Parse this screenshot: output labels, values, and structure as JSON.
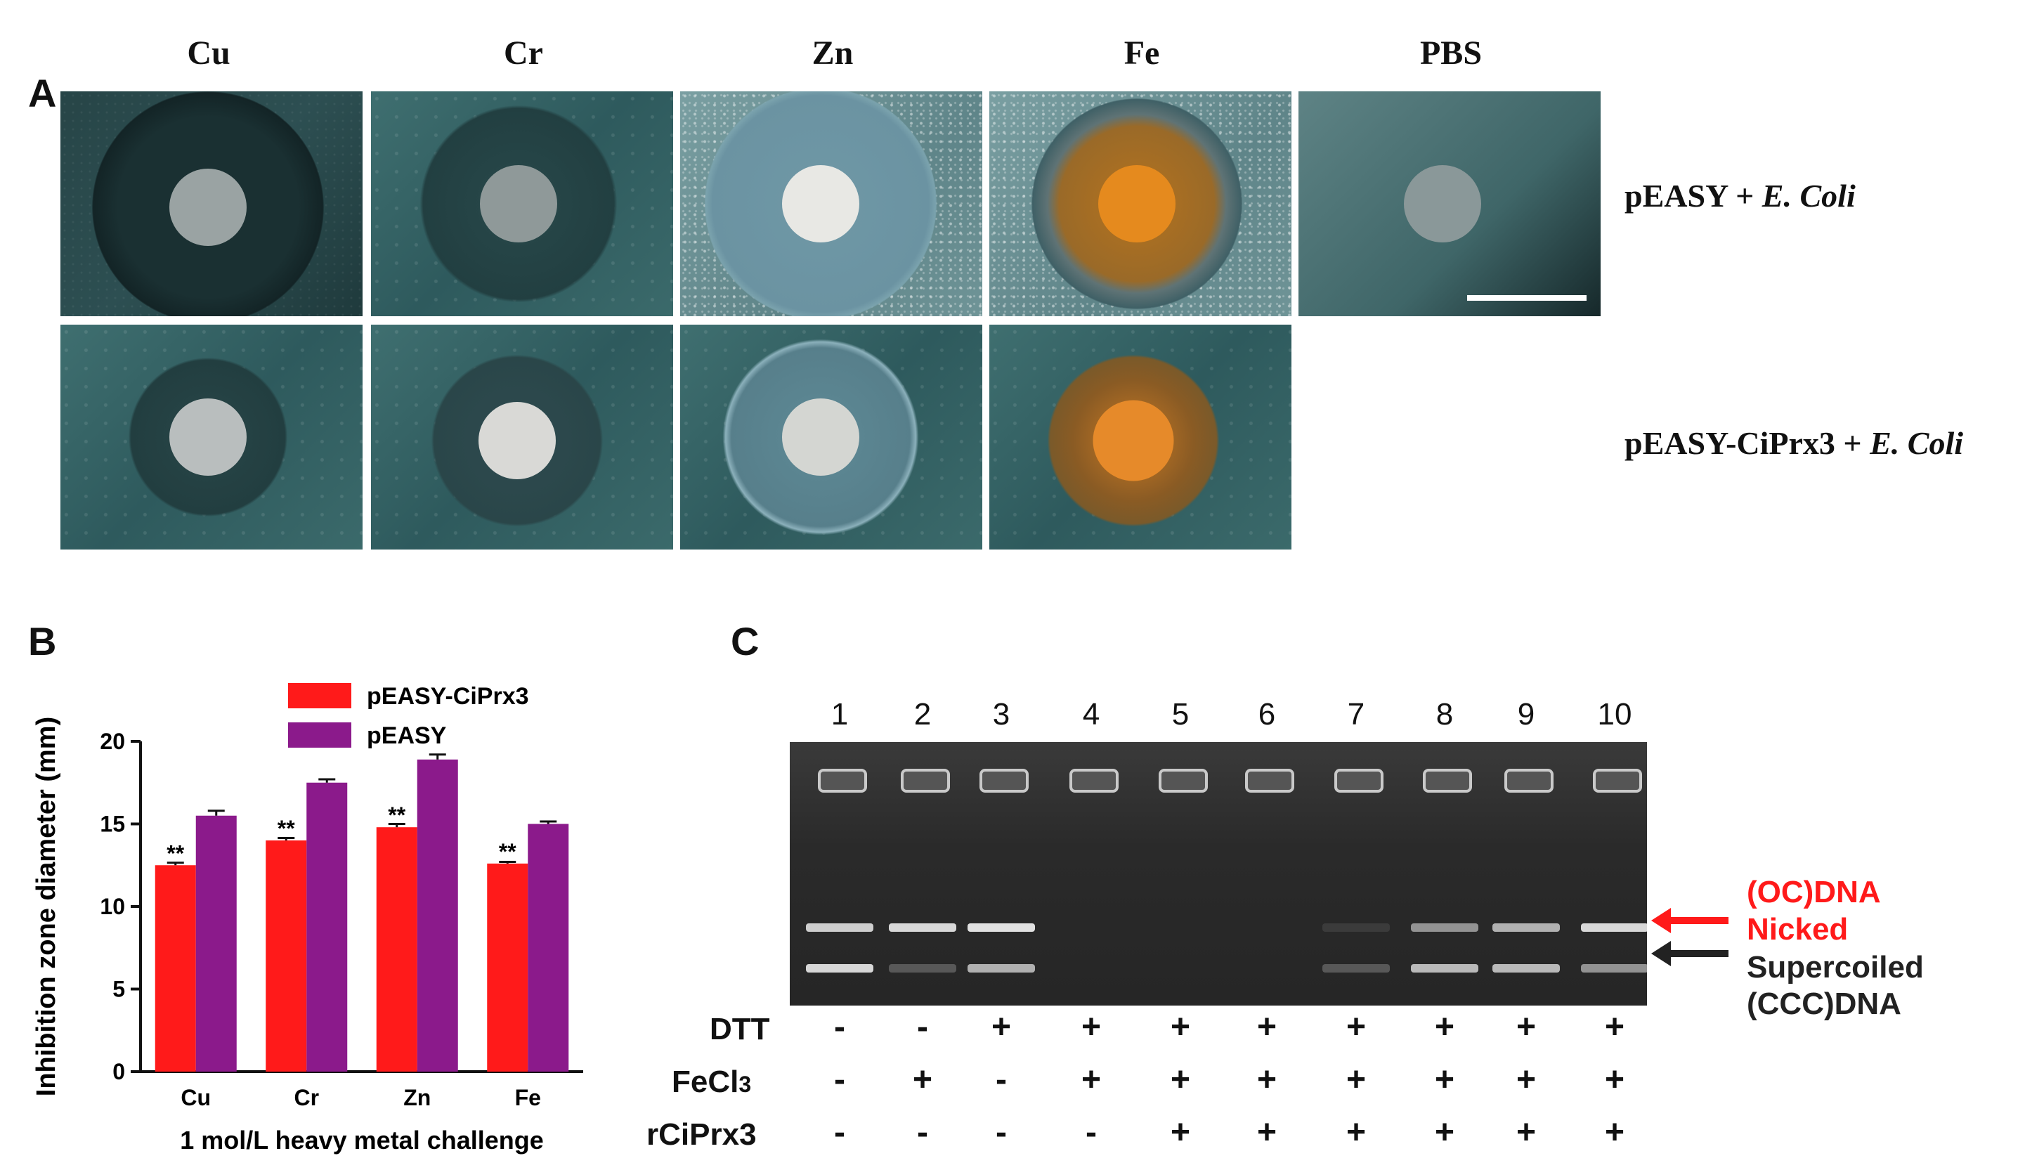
{
  "panels": {
    "a": "A",
    "b": "B",
    "c": "C"
  },
  "panel_a": {
    "columns": [
      "Cu",
      "Cr",
      "Zn",
      "Fe",
      "PBS"
    ],
    "rows": [
      {
        "label_prefix": "pEASY + ",
        "label_italic": "E. Coli"
      },
      {
        "label_prefix": "pEASY-CiPrx3 + ",
        "label_italic": "E. Coli"
      }
    ]
  },
  "chart_data": {
    "type": "bar",
    "categories": [
      "Cu",
      "Cr",
      "Zn",
      "Fe"
    ],
    "series": [
      {
        "name": "pEASY-CiPrx3",
        "color": "#ff1a1a",
        "values": [
          12.5,
          14.0,
          14.8,
          12.6
        ],
        "errors": [
          0.15,
          0.15,
          0.2,
          0.1
        ],
        "significance": [
          "**",
          "**",
          "**",
          "**"
        ]
      },
      {
        "name": "pEASY",
        "color": "#8b1a8b",
        "values": [
          15.5,
          17.5,
          18.9,
          15.0
        ],
        "errors": [
          0.3,
          0.2,
          0.3,
          0.15
        ]
      }
    ],
    "ylabel": "Inhibition zone diameter (mm)",
    "xlabel": "1 mol/L heavy metal challenge",
    "ylim": [
      0,
      20
    ],
    "yticks": [
      0,
      5,
      10,
      15,
      20
    ],
    "legend_position": "top"
  },
  "panel_c": {
    "lanes": [
      "1",
      "2",
      "3",
      "4",
      "5",
      "6",
      "7",
      "8",
      "9",
      "10"
    ],
    "treatments": [
      {
        "label": "DTT",
        "values": [
          "-",
          "-",
          "+",
          "+",
          "+",
          "+",
          "+",
          "+",
          "+",
          "+"
        ]
      },
      {
        "label": "FeCl",
        "sub": "3",
        "values": [
          "-",
          "+",
          "-",
          "+",
          "+",
          "+",
          "+",
          "+",
          "+",
          "+"
        ]
      },
      {
        "label": "rCiPrx3",
        "values": [
          "-",
          "-",
          "-",
          "-",
          "+",
          "+",
          "+",
          "+",
          "+",
          "+"
        ]
      }
    ],
    "annotations": {
      "oc": "(OC)DNA",
      "nicked": "Nicked",
      "supercoiled": "Supercoiled",
      "ccc": "(CCC)DNA",
      "oc_color": "#ff1a1a",
      "sc_color": "#222222"
    }
  }
}
